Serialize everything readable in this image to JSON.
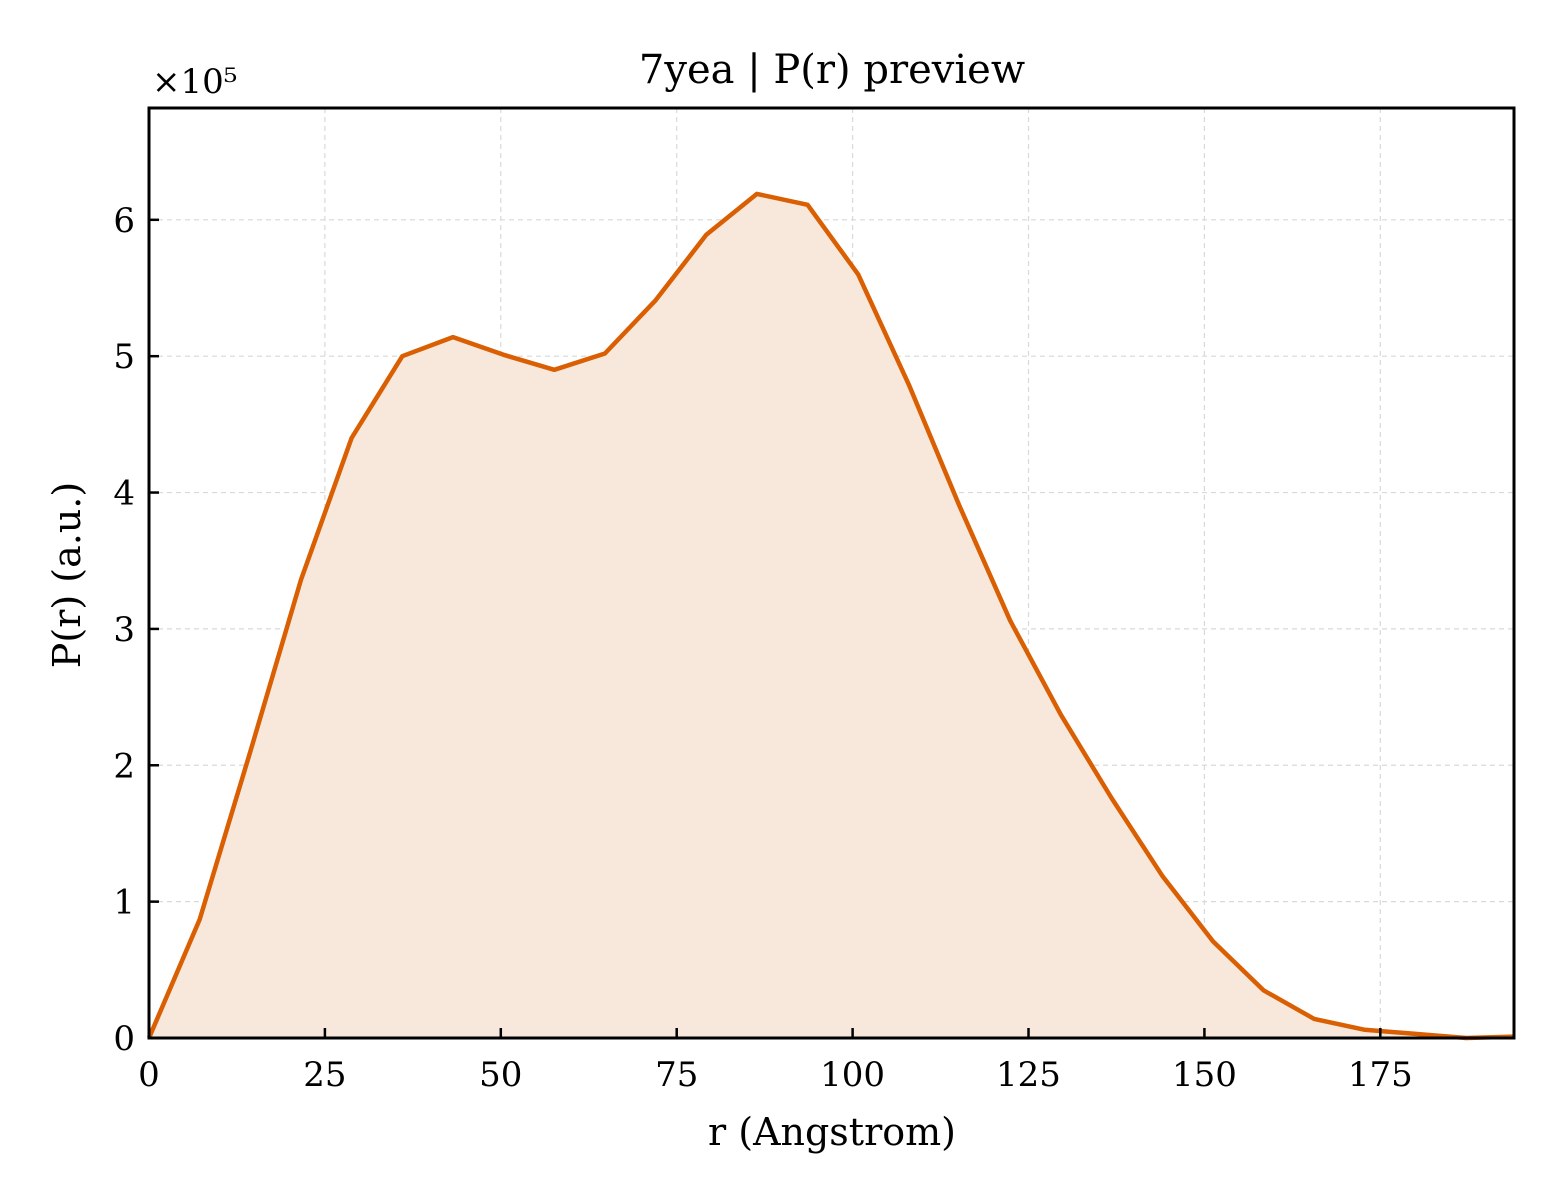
{
  "chart_data": {
    "type": "area",
    "title": "7yea | P(r) preview",
    "xlabel": "r (Angstrom)",
    "ylabel": "P(r) (a.u.)",
    "y_scale_label": "×10⁵",
    "y_multiplier": 100000,
    "xlim": [
      0,
      194
    ],
    "ylim": [
      0,
      6.82
    ],
    "x_ticks": [
      0,
      25,
      50,
      75,
      100,
      125,
      150,
      175
    ],
    "y_ticks": [
      0,
      1,
      2,
      3,
      4,
      5,
      6
    ],
    "grid": true,
    "colors": {
      "line": "#d95f02",
      "fill": "#f8e8dc",
      "grid": "#d9d9d9",
      "axes": "#000000"
    },
    "series": [
      {
        "x": [
          0,
          7.2,
          14.4,
          21.6,
          28.8,
          36.0,
          43.2,
          50.4,
          57.6,
          64.8,
          72.0,
          79.2,
          86.4,
          93.6,
          100.8,
          108.0,
          115.2,
          122.4,
          129.6,
          136.8,
          144.0,
          151.2,
          158.4,
          165.6,
          172.8,
          180.0,
          187.2,
          194.0
        ],
        "y": [
          0.0,
          0.87,
          2.1,
          3.36,
          4.4,
          5.0,
          5.14,
          5.01,
          4.9,
          5.02,
          5.41,
          5.89,
          6.19,
          6.11,
          5.6,
          4.79,
          3.9,
          3.06,
          2.37,
          1.76,
          1.19,
          0.71,
          0.35,
          0.14,
          0.06,
          0.03,
          0.0,
          0.01
        ]
      }
    ]
  }
}
